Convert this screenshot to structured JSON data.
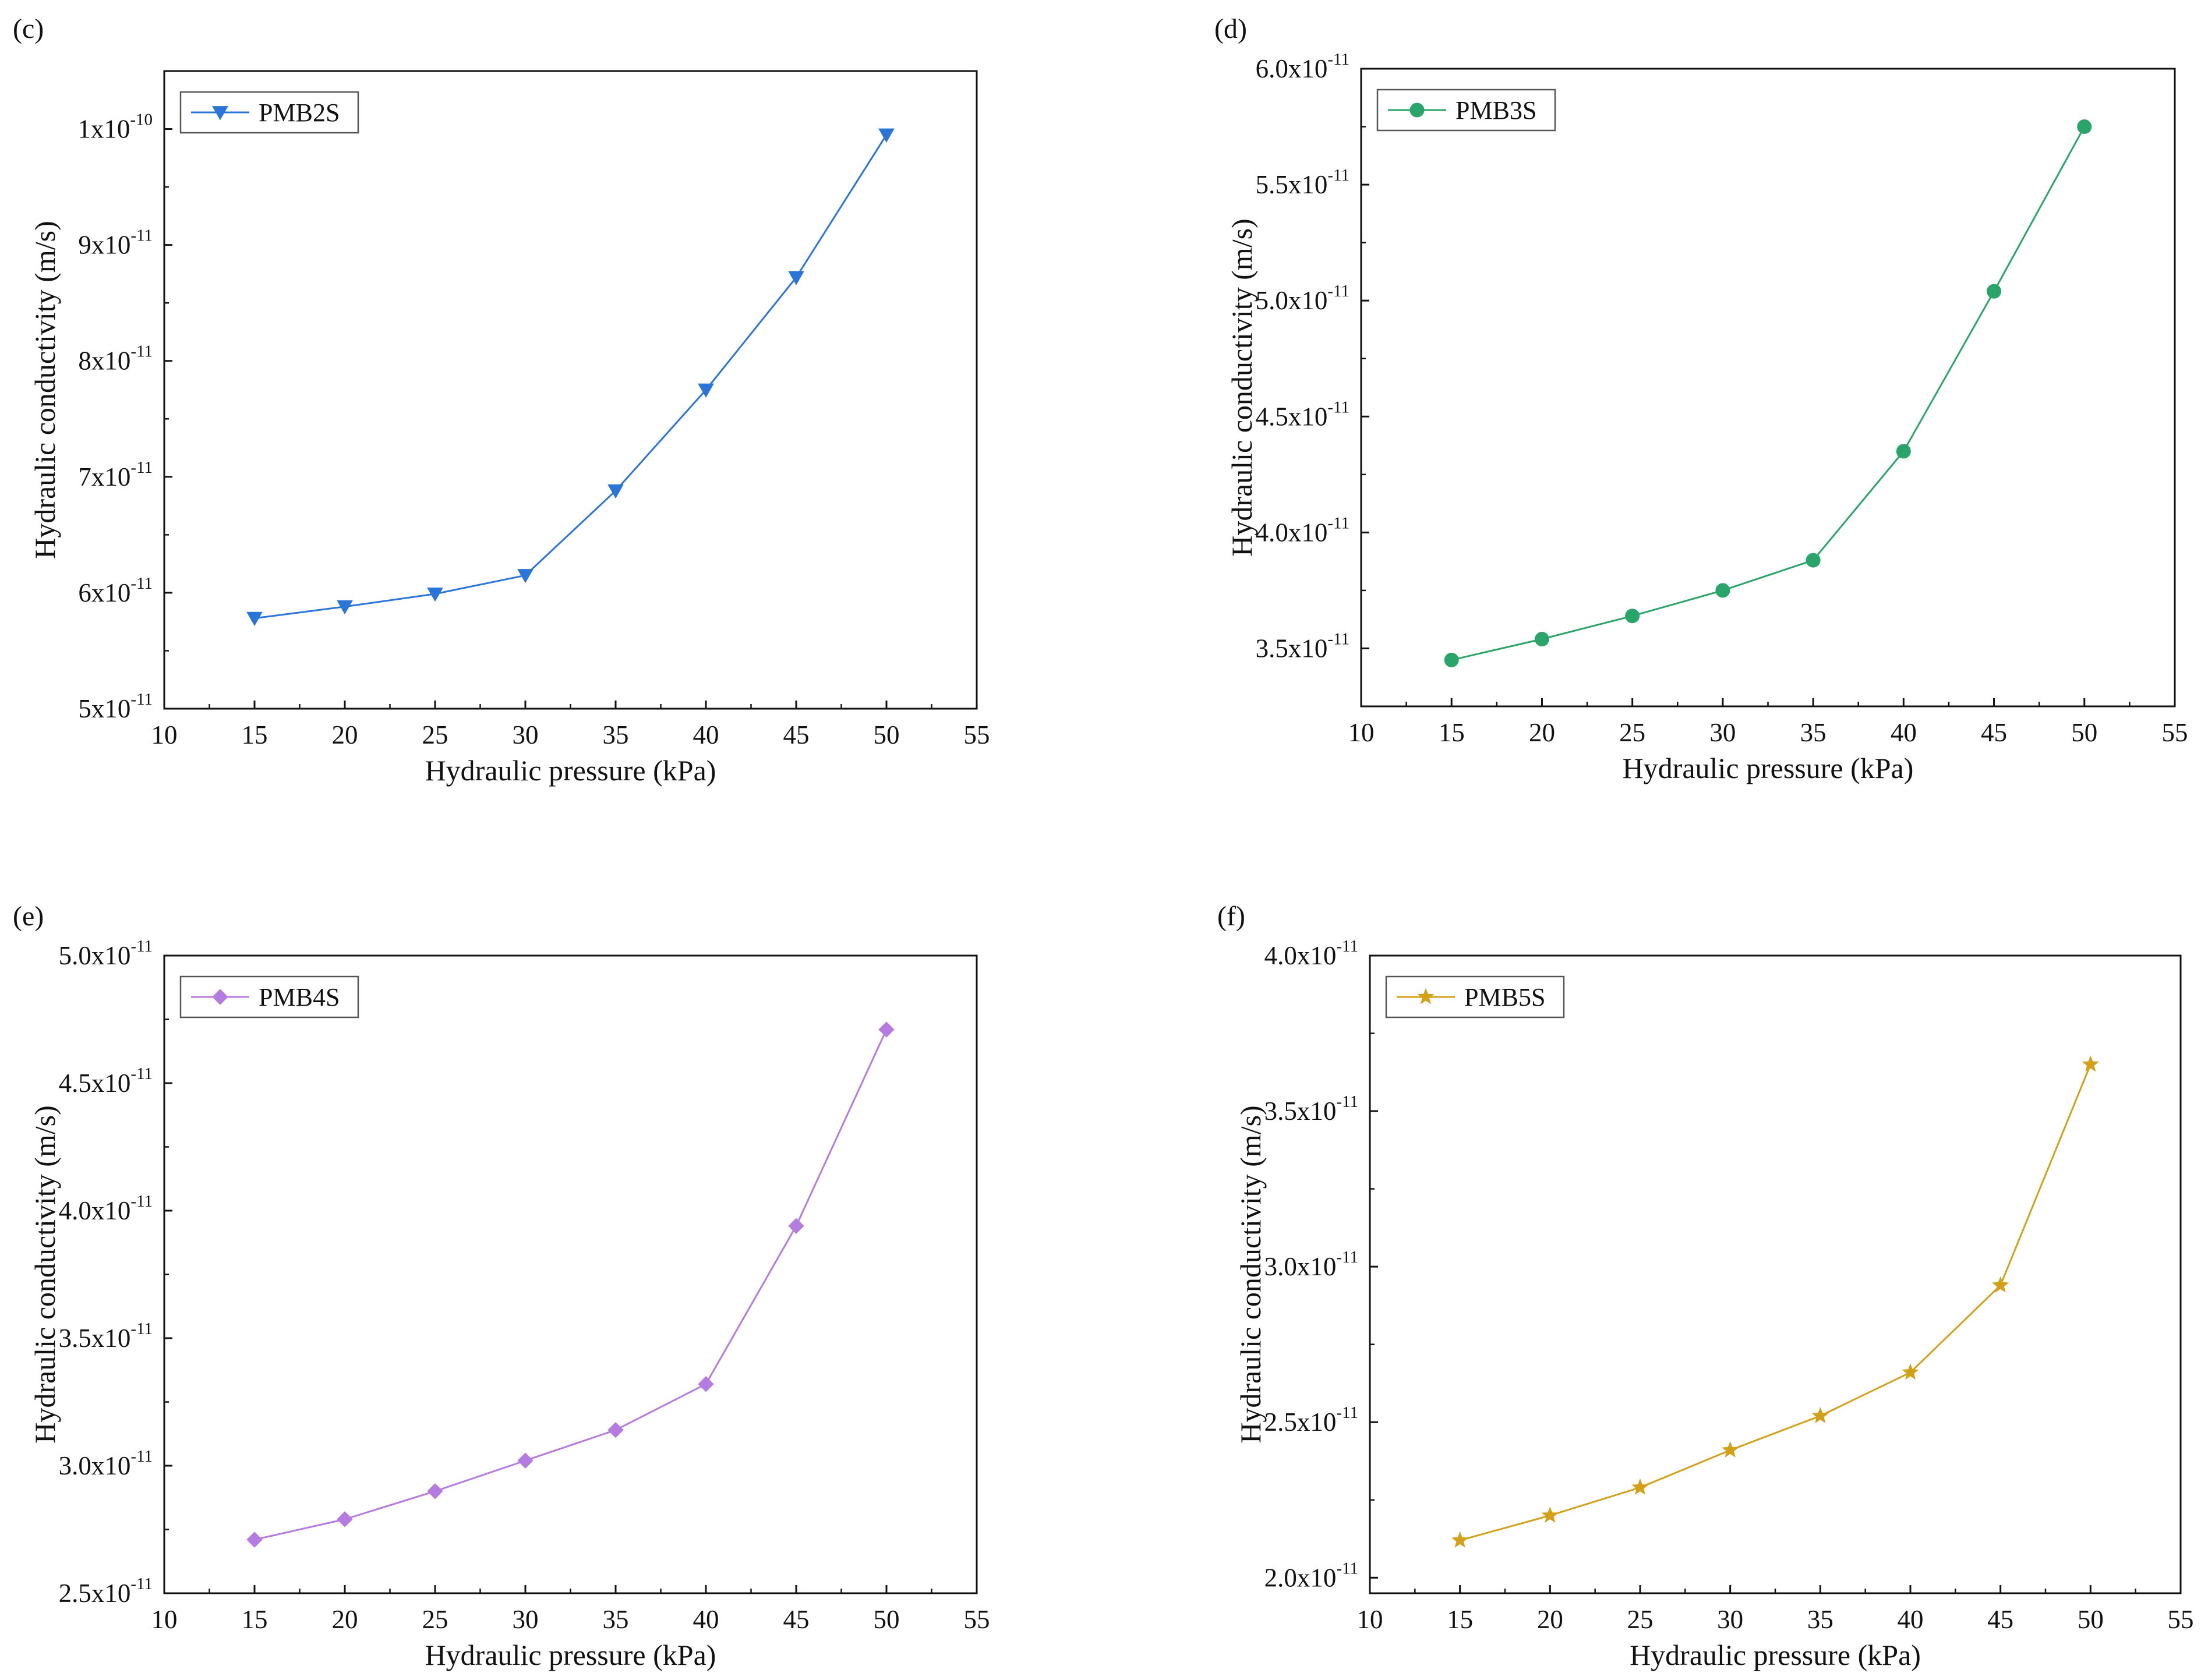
{
  "chart_data": [
    {
      "panel": "(c)",
      "type": "line",
      "xlabel": "Hydraulic pressure (kPa)",
      "ylabel": "Hydraulic conductivity (m/s)",
      "xlim": [
        10,
        55
      ],
      "ylim": [
        5e-11,
        1.05e-10
      ],
      "xticks": [
        10,
        15,
        20,
        25,
        30,
        35,
        40,
        45,
        50,
        55
      ],
      "yticks": [
        {
          "value": 5e-11,
          "mantissa": "5x10",
          "exponent": "-11"
        },
        {
          "value": 6e-11,
          "mantissa": "6x10",
          "exponent": "-11"
        },
        {
          "value": 7e-11,
          "mantissa": "7x10",
          "exponent": "-11"
        },
        {
          "value": 8e-11,
          "mantissa": "8x10",
          "exponent": "-11"
        },
        {
          "value": 9e-11,
          "mantissa": "9x10",
          "exponent": "-11"
        },
        {
          "value": 1e-10,
          "mantissa": "1x10",
          "exponent": "-10"
        }
      ],
      "legend_position": "top-left",
      "grid": false,
      "series": [
        {
          "name": "PMB2S",
          "color": "#2a75d8",
          "marker": "triangle-down",
          "x": [
            15,
            20,
            25,
            30,
            35,
            40,
            45,
            50
          ],
          "y": [
            5.78e-11,
            5.88e-11,
            5.99e-11,
            6.15e-11,
            6.88e-11,
            7.75e-11,
            8.72e-11,
            9.95e-11
          ]
        }
      ]
    },
    {
      "panel": "(d)",
      "type": "line",
      "xlabel": "Hydraulic pressure (kPa)",
      "ylabel": "Hydraulic conductivity (m/s)",
      "xlim": [
        10,
        55
      ],
      "ylim": [
        3.25e-11,
        6e-11
      ],
      "xticks": [
        10,
        15,
        20,
        25,
        30,
        35,
        40,
        45,
        50,
        55
      ],
      "yticks": [
        {
          "value": 3.5e-11,
          "mantissa": "3.5x10",
          "exponent": "-11"
        },
        {
          "value": 4e-11,
          "mantissa": "4.0x10",
          "exponent": "-11"
        },
        {
          "value": 4.5e-11,
          "mantissa": "4.5x10",
          "exponent": "-11"
        },
        {
          "value": 5e-11,
          "mantissa": "5.0x10",
          "exponent": "-11"
        },
        {
          "value": 5.5e-11,
          "mantissa": "5.5x10",
          "exponent": "-11"
        },
        {
          "value": 6e-11,
          "mantissa": "6.0x10",
          "exponent": "-11"
        }
      ],
      "legend_position": "top-left",
      "grid": false,
      "series": [
        {
          "name": "PMB3S",
          "color": "#2aa56a",
          "marker": "circle",
          "x": [
            15,
            20,
            25,
            30,
            35,
            40,
            45,
            50
          ],
          "y": [
            3.45e-11,
            3.54e-11,
            3.64e-11,
            3.75e-11,
            3.88e-11,
            4.35e-11,
            5.04e-11,
            5.75e-11
          ]
        }
      ]
    },
    {
      "panel": "(e)",
      "type": "line",
      "xlabel": "Hydraulic pressure (kPa)",
      "ylabel": "Hydraulic conductivity (m/s)",
      "xlim": [
        10,
        55
      ],
      "ylim": [
        2.5e-11,
        5e-11
      ],
      "xticks": [
        10,
        15,
        20,
        25,
        30,
        35,
        40,
        45,
        50,
        55
      ],
      "yticks": [
        {
          "value": 2.5e-11,
          "mantissa": "2.5x10",
          "exponent": "-11"
        },
        {
          "value": 3e-11,
          "mantissa": "3.0x10",
          "exponent": "-11"
        },
        {
          "value": 3.5e-11,
          "mantissa": "3.5x10",
          "exponent": "-11"
        },
        {
          "value": 4e-11,
          "mantissa": "4.0x10",
          "exponent": "-11"
        },
        {
          "value": 4.5e-11,
          "mantissa": "4.5x10",
          "exponent": "-11"
        },
        {
          "value": 5e-11,
          "mantissa": "5.0x10",
          "exponent": "-11"
        }
      ],
      "legend_position": "top-left",
      "grid": false,
      "series": [
        {
          "name": "PMB4S",
          "color": "#b57be0",
          "marker": "diamond",
          "x": [
            15,
            20,
            25,
            30,
            35,
            40,
            45,
            50
          ],
          "y": [
            2.71e-11,
            2.79e-11,
            2.9e-11,
            3.02e-11,
            3.14e-11,
            3.32e-11,
            3.94e-11,
            4.71e-11
          ]
        }
      ]
    },
    {
      "panel": "(f)",
      "type": "line",
      "xlabel": "Hydraulic pressure (kPa)",
      "ylabel": "Hydraulic conductivity (m/s)",
      "xlim": [
        10,
        55
      ],
      "ylim": [
        1.95e-11,
        4e-11
      ],
      "xticks": [
        10,
        15,
        20,
        25,
        30,
        35,
        40,
        45,
        50,
        55
      ],
      "yticks": [
        {
          "value": 2e-11,
          "mantissa": "2.0x10",
          "exponent": "-11"
        },
        {
          "value": 2.5e-11,
          "mantissa": "2.5x10",
          "exponent": "-11"
        },
        {
          "value": 3e-11,
          "mantissa": "3.0x10",
          "exponent": "-11"
        },
        {
          "value": 3.5e-11,
          "mantissa": "3.5x10",
          "exponent": "-11"
        },
        {
          "value": 4e-11,
          "mantissa": "4.0x10",
          "exponent": "-11"
        }
      ],
      "legend_position": "top-left",
      "grid": false,
      "series": [
        {
          "name": "PMB5S",
          "color": "#d4a017",
          "marker": "star",
          "x": [
            15,
            20,
            25,
            30,
            35,
            40,
            45,
            50
          ],
          "y": [
            2.12e-11,
            2.2e-11,
            2.29e-11,
            2.41e-11,
            2.52e-11,
            2.66e-11,
            2.94e-11,
            3.65e-11
          ]
        }
      ]
    }
  ]
}
